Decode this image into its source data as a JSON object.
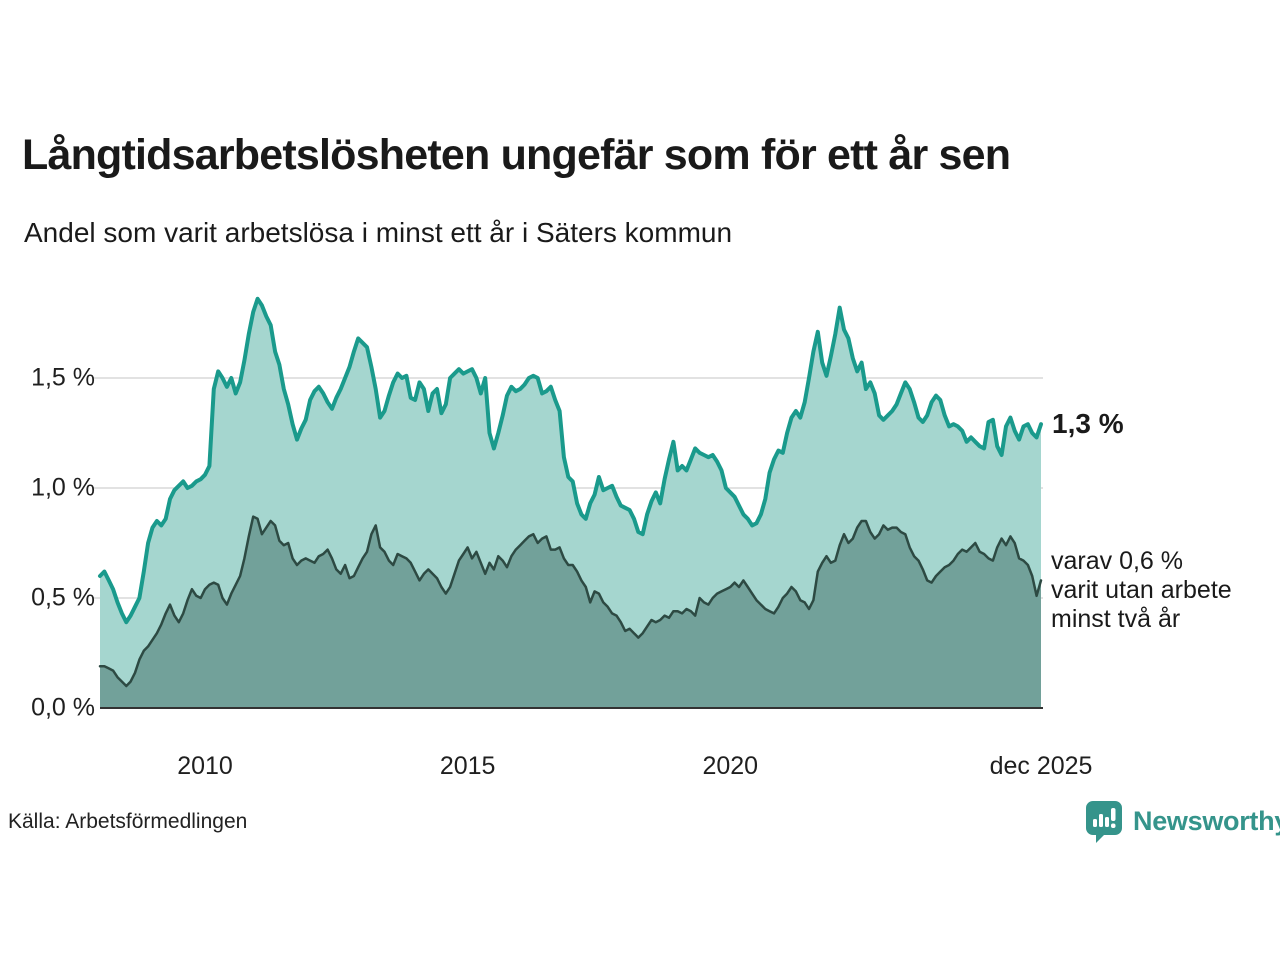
{
  "title": "Långtidsarbetslösheten ungefär som för ett år sen",
  "subtitle": "Andel som varit arbetslösa i minst ett år i Säters kommun",
  "source": "Källa: Arbetsförmedlingen",
  "brand": {
    "name": "Newsworthy",
    "color": "#35948b",
    "icon": "speech-bubble-bar-chart"
  },
  "annotations": {
    "end_label_long": "1,3 %",
    "end_label_short_lines": [
      "varav 0,6 %",
      "varit utan arbete",
      "minst två år"
    ]
  },
  "colors": {
    "gridline": "#d9d9d9",
    "axis_line": "#333333",
    "text": "#1a1a1a",
    "brand": "#35948b"
  },
  "chart_data": {
    "type": "area",
    "title": "Långtidsarbetslösheten ungefär som för ett år sen",
    "subtitle": "Andel som varit arbetslösa i minst ett år i Säters kommun",
    "unit": "%",
    "interval": "monthly",
    "x_start_approx": "2008-01",
    "x_end": "2025-12",
    "ylim": [
      0,
      1.95
    ],
    "grid": "horizontal",
    "legend_position": "none",
    "y_ticks": [
      {
        "value": 0.0,
        "label": "0,0 %"
      },
      {
        "value": 0.5,
        "label": "0,5 %"
      },
      {
        "value": 1.0,
        "label": "1,0 %"
      },
      {
        "value": 1.5,
        "label": "1,5 %"
      }
    ],
    "x_ticks": [
      {
        "month_index": 24,
        "label": "2010"
      },
      {
        "month_index": 84,
        "label": "2015"
      },
      {
        "month_index": 144,
        "label": "2020"
      },
      {
        "month_index": 215,
        "label": "dec 2025"
      }
    ],
    "series": [
      {
        "name": "Andel som varit arbetslösa i minst ett år",
        "end_value": 1.3,
        "end_value_label": "1,3 %",
        "line_color": "#1a9a8c",
        "fill_color": "#a5d6cf",
        "line_width": 4,
        "values": [
          0.6,
          0.62,
          0.58,
          0.54,
          0.48,
          0.43,
          0.39,
          0.42,
          0.46,
          0.5,
          0.62,
          0.75,
          0.82,
          0.85,
          0.83,
          0.86,
          0.95,
          0.99,
          1.01,
          1.03,
          1.0,
          1.01,
          1.03,
          1.04,
          1.06,
          1.1,
          1.45,
          1.53,
          1.5,
          1.46,
          1.5,
          1.43,
          1.48,
          1.58,
          1.7,
          1.8,
          1.86,
          1.83,
          1.78,
          1.74,
          1.62,
          1.56,
          1.45,
          1.38,
          1.29,
          1.22,
          1.27,
          1.31,
          1.4,
          1.44,
          1.46,
          1.43,
          1.39,
          1.36,
          1.41,
          1.45,
          1.5,
          1.55,
          1.62,
          1.68,
          1.66,
          1.64,
          1.55,
          1.45,
          1.32,
          1.35,
          1.42,
          1.48,
          1.52,
          1.5,
          1.51,
          1.41,
          1.4,
          1.48,
          1.45,
          1.35,
          1.43,
          1.45,
          1.34,
          1.38,
          1.5,
          1.52,
          1.54,
          1.52,
          1.53,
          1.54,
          1.5,
          1.43,
          1.5,
          1.25,
          1.18,
          1.25,
          1.33,
          1.42,
          1.46,
          1.44,
          1.45,
          1.47,
          1.5,
          1.51,
          1.5,
          1.43,
          1.44,
          1.46,
          1.4,
          1.35,
          1.14,
          1.05,
          1.03,
          0.93,
          0.88,
          0.86,
          0.93,
          0.97,
          1.05,
          0.99,
          1.0,
          1.01,
          0.96,
          0.92,
          0.91,
          0.9,
          0.86,
          0.8,
          0.79,
          0.88,
          0.94,
          0.98,
          0.93,
          1.04,
          1.13,
          1.21,
          1.08,
          1.1,
          1.08,
          1.13,
          1.18,
          1.16,
          1.15,
          1.14,
          1.15,
          1.12,
          1.08,
          1.0,
          0.98,
          0.96,
          0.92,
          0.88,
          0.86,
          0.83,
          0.84,
          0.88,
          0.95,
          1.07,
          1.13,
          1.17,
          1.16,
          1.25,
          1.32,
          1.35,
          1.32,
          1.39,
          1.5,
          1.62,
          1.71,
          1.57,
          1.51,
          1.6,
          1.7,
          1.82,
          1.72,
          1.68,
          1.59,
          1.53,
          1.57,
          1.45,
          1.48,
          1.43,
          1.33,
          1.31,
          1.33,
          1.35,
          1.38,
          1.43,
          1.48,
          1.45,
          1.39,
          1.32,
          1.3,
          1.33,
          1.39,
          1.42,
          1.4,
          1.33,
          1.28,
          1.29,
          1.28,
          1.26,
          1.21,
          1.23,
          1.21,
          1.19,
          1.18,
          1.3,
          1.31,
          1.19,
          1.15,
          1.28,
          1.32,
          1.26,
          1.22,
          1.28,
          1.29,
          1.25,
          1.23,
          1.29
        ]
      },
      {
        "name": "varav utan arbete minst två år",
        "end_value": 0.6,
        "end_value_label": "varav 0,6 % varit utan arbete minst två år",
        "line_color": "#2d4a43",
        "fill_color": "#72a19a",
        "line_width": 2.5,
        "values": [
          0.19,
          0.19,
          0.18,
          0.17,
          0.14,
          0.12,
          0.1,
          0.12,
          0.16,
          0.22,
          0.26,
          0.28,
          0.31,
          0.34,
          0.38,
          0.43,
          0.47,
          0.42,
          0.39,
          0.43,
          0.49,
          0.54,
          0.51,
          0.5,
          0.54,
          0.56,
          0.57,
          0.56,
          0.5,
          0.47,
          0.52,
          0.56,
          0.6,
          0.68,
          0.78,
          0.87,
          0.86,
          0.79,
          0.82,
          0.85,
          0.83,
          0.76,
          0.74,
          0.75,
          0.68,
          0.65,
          0.67,
          0.68,
          0.67,
          0.66,
          0.69,
          0.7,
          0.72,
          0.68,
          0.63,
          0.61,
          0.65,
          0.59,
          0.6,
          0.64,
          0.68,
          0.71,
          0.79,
          0.83,
          0.73,
          0.71,
          0.67,
          0.65,
          0.7,
          0.69,
          0.68,
          0.66,
          0.62,
          0.58,
          0.61,
          0.63,
          0.61,
          0.59,
          0.55,
          0.52,
          0.55,
          0.61,
          0.67,
          0.7,
          0.73,
          0.68,
          0.71,
          0.66,
          0.61,
          0.66,
          0.63,
          0.69,
          0.67,
          0.64,
          0.69,
          0.72,
          0.74,
          0.76,
          0.78,
          0.79,
          0.75,
          0.77,
          0.78,
          0.72,
          0.72,
          0.73,
          0.68,
          0.65,
          0.65,
          0.62,
          0.58,
          0.55,
          0.48,
          0.53,
          0.52,
          0.48,
          0.46,
          0.43,
          0.42,
          0.39,
          0.35,
          0.36,
          0.34,
          0.32,
          0.34,
          0.37,
          0.4,
          0.39,
          0.4,
          0.42,
          0.41,
          0.44,
          0.44,
          0.43,
          0.45,
          0.44,
          0.42,
          0.5,
          0.48,
          0.47,
          0.5,
          0.52,
          0.53,
          0.54,
          0.55,
          0.57,
          0.55,
          0.58,
          0.55,
          0.52,
          0.49,
          0.47,
          0.45,
          0.44,
          0.43,
          0.46,
          0.5,
          0.52,
          0.55,
          0.53,
          0.49,
          0.48,
          0.45,
          0.49,
          0.62,
          0.66,
          0.69,
          0.66,
          0.67,
          0.74,
          0.79,
          0.75,
          0.77,
          0.82,
          0.85,
          0.85,
          0.8,
          0.77,
          0.79,
          0.83,
          0.81,
          0.82,
          0.82,
          0.8,
          0.79,
          0.73,
          0.69,
          0.67,
          0.63,
          0.58,
          0.57,
          0.6,
          0.62,
          0.64,
          0.65,
          0.67,
          0.7,
          0.72,
          0.71,
          0.73,
          0.75,
          0.71,
          0.7,
          0.68,
          0.67,
          0.73,
          0.77,
          0.74,
          0.78,
          0.75,
          0.68,
          0.67,
          0.65,
          0.6,
          0.51,
          0.58
        ]
      }
    ]
  }
}
